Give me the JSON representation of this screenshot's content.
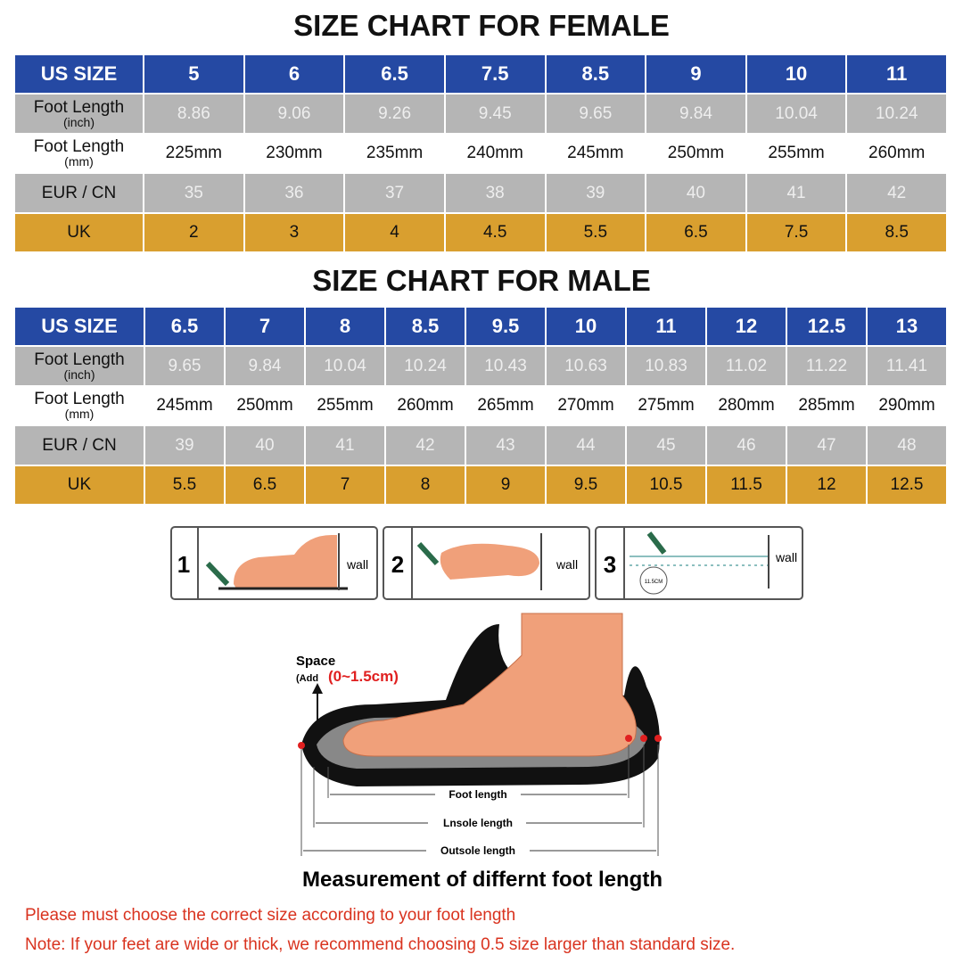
{
  "female": {
    "title": "SIZE CHART FOR FEMALE",
    "header": [
      "US SIZE",
      "5",
      "6",
      "6.5",
      "7.5",
      "8.5",
      "9",
      "10",
      "11"
    ],
    "rows": [
      {
        "label": [
          "Foot Length",
          "(inch)"
        ],
        "cells": [
          "8.86",
          "9.06",
          "9.26",
          "9.45",
          "9.65",
          "9.84",
          "10.04",
          "10.24"
        ]
      },
      {
        "label": [
          "Foot Length",
          "(mm)"
        ],
        "cells": [
          "225mm",
          "230mm",
          "235mm",
          "240mm",
          "245mm",
          "250mm",
          "255mm",
          "260mm"
        ]
      },
      {
        "label": [
          "EUR / CN"
        ],
        "cells": [
          "35",
          "36",
          "37",
          "38",
          "39",
          "40",
          "41",
          "42"
        ]
      },
      {
        "label": [
          "UK"
        ],
        "cells": [
          "2",
          "3",
          "4",
          "4.5",
          "5.5",
          "6.5",
          "7.5",
          "8.5"
        ]
      }
    ]
  },
  "male": {
    "title": "SIZE CHART FOR MALE",
    "header": [
      "US SIZE",
      "6.5",
      "7",
      "8",
      "8.5",
      "9.5",
      "10",
      "11",
      "12",
      "12.5",
      "13"
    ],
    "rows": [
      {
        "label": [
          "Foot Length",
          "(inch)"
        ],
        "cells": [
          "9.65",
          "9.84",
          "10.04",
          "10.24",
          "10.43",
          "10.63",
          "10.83",
          "11.02",
          "11.22",
          "11.41"
        ]
      },
      {
        "label": [
          "Foot Length",
          "(mm)"
        ],
        "cells": [
          "245mm",
          "250mm",
          "255mm",
          "260mm",
          "265mm",
          "270mm",
          "275mm",
          "280mm",
          "285mm",
          "290mm"
        ]
      },
      {
        "label": [
          "EUR / CN"
        ],
        "cells": [
          "39",
          "40",
          "41",
          "42",
          "43",
          "44",
          "45",
          "46",
          "47",
          "48"
        ]
      },
      {
        "label": [
          "UK"
        ],
        "cells": [
          "5.5",
          "6.5",
          "7",
          "8",
          "9",
          "9.5",
          "10.5",
          "11.5",
          "12",
          "12.5"
        ]
      }
    ]
  },
  "steps": [
    {
      "number": "1",
      "wall": "wall"
    },
    {
      "number": "2",
      "wall": "wall"
    },
    {
      "number": "3",
      "wall": "wall",
      "mark": "11.5CM"
    }
  ],
  "diagram": {
    "space": "Space",
    "add": "(Add",
    "range": "(0~1.5cm)",
    "foot_length": "Foot length",
    "insole_length": "Lnsole length",
    "outsole_length": "Outsole length",
    "caption": "Measurement of differnt foot length"
  },
  "notes": [
    "Please must choose the correct size  according to your foot length",
    "Note: If your feet are wide or thick, we recommend choosing 0.5 size larger than standard size."
  ]
}
